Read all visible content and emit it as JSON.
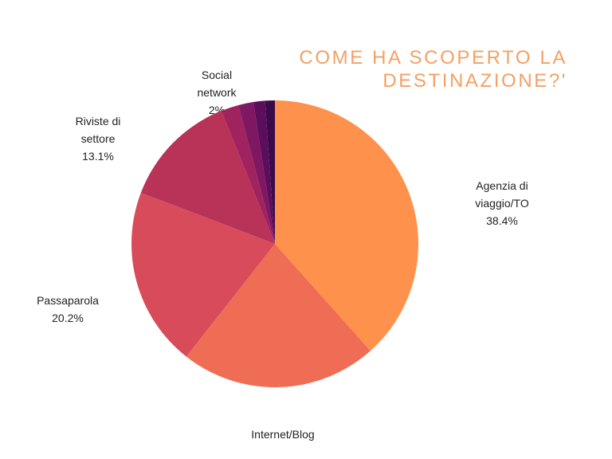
{
  "chart_data": {
    "type": "pie",
    "title": "COME HA SCOPERTO LA DESTINAZIONE?'",
    "categories": [
      "Agenzia di viaggio/TO",
      "Internet/Blog",
      "Passaparola",
      "Riviste di settore",
      "Social network",
      null,
      null,
      null
    ],
    "values": [
      38.4,
      22.2,
      20.2,
      13.1,
      2,
      1.7,
      1.3,
      1.1
    ],
    "value_labels": [
      "38.4%",
      null,
      "20.2%",
      "13.1%",
      "2%",
      null,
      null,
      null
    ],
    "colors": [
      "#fe914c",
      "#ef6c55",
      "#d84b5a",
      "#b93258",
      "#a0235f",
      "#7f1762",
      "#5c0e5c",
      "#3b0a4b"
    ]
  }
}
